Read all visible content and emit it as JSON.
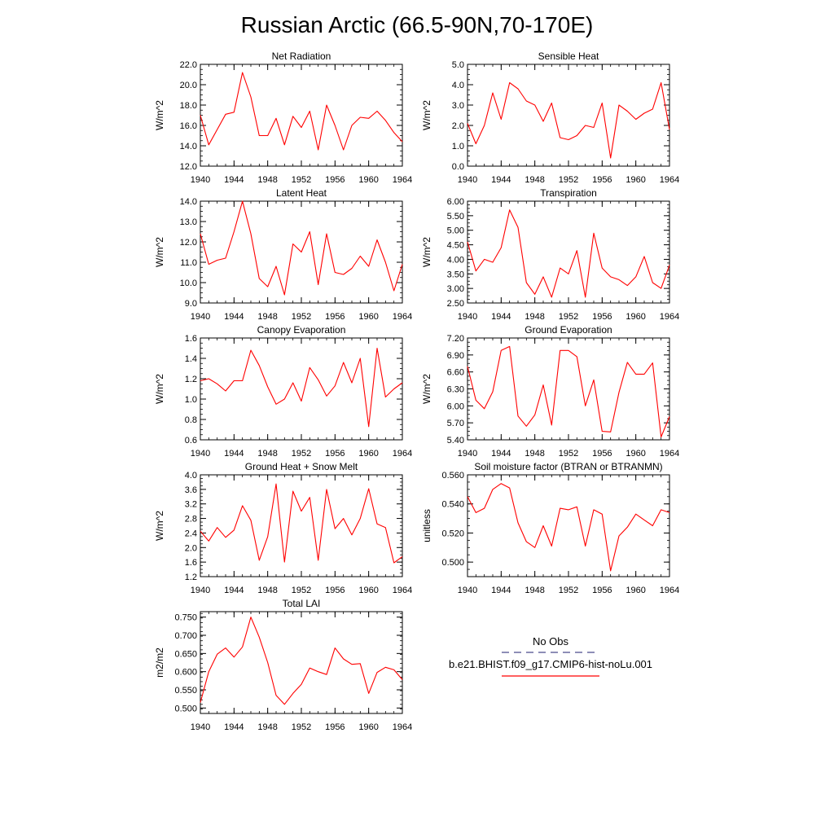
{
  "page": {
    "title": "Russian Arctic (66.5-90N,70-170E)"
  },
  "legend": {
    "obs_label": "No Obs",
    "obs_color": "#4b4b8c",
    "model_label": "b.e21.BHIST.f09_g17.CMIP6-hist-noLu.001",
    "model_color": "#ff0000"
  },
  "chart_data": [
    {
      "type": "line",
      "title": "Net Radiation",
      "ylabel": "W/m^2",
      "xlim": [
        1940,
        1964
      ],
      "ylim": [
        12.0,
        22.0
      ],
      "xticks": [
        "1940",
        "1944",
        "1948",
        "1952",
        "1956",
        "1960",
        "1964"
      ],
      "yticks": [
        "12.0",
        "14.0",
        "16.0",
        "18.0",
        "20.0",
        "22.0"
      ],
      "x": [
        1940,
        1941,
        1942,
        1943,
        1944,
        1945,
        1946,
        1947,
        1948,
        1949,
        1950,
        1951,
        1952,
        1953,
        1954,
        1955,
        1956,
        1957,
        1958,
        1959,
        1960,
        1961,
        1962,
        1963,
        1964
      ],
      "series": [
        {
          "values": [
            17.0,
            14.1,
            15.6,
            17.1,
            17.3,
            21.2,
            18.8,
            15.0,
            15.0,
            16.7,
            14.1,
            16.9,
            15.8,
            17.4,
            13.6,
            18.0,
            16.0,
            13.6,
            16.0,
            16.8,
            16.7,
            17.4,
            16.5,
            15.3,
            14.4
          ]
        }
      ]
    },
    {
      "type": "line",
      "title": "Sensible Heat",
      "ylabel": "W/m^2",
      "xlim": [
        1940,
        1964
      ],
      "ylim": [
        0.0,
        5.0
      ],
      "xticks": [
        "1940",
        "1944",
        "1948",
        "1952",
        "1956",
        "1960",
        "1964"
      ],
      "yticks": [
        "0.0",
        "1.0",
        "2.0",
        "3.0",
        "4.0",
        "5.0"
      ],
      "x": [
        1940,
        1941,
        1942,
        1943,
        1944,
        1945,
        1946,
        1947,
        1948,
        1949,
        1950,
        1951,
        1952,
        1953,
        1954,
        1955,
        1956,
        1957,
        1958,
        1959,
        1960,
        1961,
        1962,
        1963,
        1964
      ],
      "series": [
        {
          "values": [
            2.1,
            1.1,
            2.0,
            3.6,
            2.3,
            4.1,
            3.8,
            3.2,
            3.0,
            2.2,
            3.1,
            1.4,
            1.3,
            1.5,
            2.0,
            1.9,
            3.1,
            0.4,
            3.0,
            2.7,
            2.3,
            2.6,
            2.8,
            4.1,
            1.8
          ]
        }
      ]
    },
    {
      "type": "line",
      "title": "Latent Heat",
      "ylabel": "W/m^2",
      "xlim": [
        1940,
        1964
      ],
      "ylim": [
        9.0,
        14.0
      ],
      "xticks": [
        "1940",
        "1944",
        "1948",
        "1952",
        "1956",
        "1960",
        "1964"
      ],
      "yticks": [
        "9.0",
        "10.0",
        "11.0",
        "12.0",
        "13.0",
        "14.0"
      ],
      "x": [
        1940,
        1941,
        1942,
        1943,
        1944,
        1945,
        1946,
        1947,
        1948,
        1949,
        1950,
        1951,
        1952,
        1953,
        1954,
        1955,
        1956,
        1957,
        1958,
        1959,
        1960,
        1961,
        1962,
        1963,
        1964
      ],
      "series": [
        {
          "values": [
            12.4,
            10.9,
            11.1,
            11.2,
            12.5,
            14.0,
            12.4,
            10.2,
            9.8,
            10.8,
            9.4,
            11.9,
            11.5,
            12.5,
            9.9,
            12.4,
            10.5,
            10.4,
            10.7,
            11.3,
            10.8,
            12.1,
            11.0,
            9.6,
            10.9
          ]
        }
      ]
    },
    {
      "type": "line",
      "title": "Transpiration",
      "ylabel": "W/m^2",
      "xlim": [
        1940,
        1964
      ],
      "ylim": [
        2.5,
        6.0
      ],
      "xticks": [
        "1940",
        "1944",
        "1948",
        "1952",
        "1956",
        "1960",
        "1964"
      ],
      "yticks": [
        "2.50",
        "3.00",
        "3.50",
        "4.00",
        "4.50",
        "5.00",
        "5.50",
        "6.00"
      ],
      "x": [
        1940,
        1941,
        1942,
        1943,
        1944,
        1945,
        1946,
        1947,
        1948,
        1949,
        1950,
        1951,
        1952,
        1953,
        1954,
        1955,
        1956,
        1957,
        1958,
        1959,
        1960,
        1961,
        1962,
        1963,
        1964
      ],
      "series": [
        {
          "values": [
            4.6,
            3.6,
            4.0,
            3.9,
            4.4,
            5.7,
            5.1,
            3.2,
            2.8,
            3.4,
            2.7,
            3.7,
            3.5,
            4.3,
            2.7,
            4.9,
            3.7,
            3.4,
            3.3,
            3.1,
            3.4,
            4.1,
            3.2,
            3.0,
            3.8
          ]
        }
      ]
    },
    {
      "type": "line",
      "title": "Canopy Evaporation",
      "ylabel": "W/m^2",
      "xlim": [
        1940,
        1964
      ],
      "ylim": [
        0.6,
        1.6
      ],
      "xticks": [
        "1940",
        "1944",
        "1948",
        "1952",
        "1956",
        "1960",
        "1964"
      ],
      "yticks": [
        "0.6",
        "0.8",
        "1.0",
        "1.2",
        "1.4",
        "1.6"
      ],
      "x": [
        1940,
        1941,
        1942,
        1943,
        1944,
        1945,
        1946,
        1947,
        1948,
        1949,
        1950,
        1951,
        1952,
        1953,
        1954,
        1955,
        1956,
        1957,
        1958,
        1959,
        1960,
        1961,
        1962,
        1963,
        1964
      ],
      "series": [
        {
          "values": [
            1.18,
            1.2,
            1.15,
            1.08,
            1.18,
            1.18,
            1.48,
            1.33,
            1.12,
            0.95,
            1.0,
            1.16,
            0.98,
            1.31,
            1.19,
            1.03,
            1.13,
            1.36,
            1.16,
            1.4,
            0.73,
            1.5,
            1.02,
            1.1,
            1.16
          ]
        }
      ]
    },
    {
      "type": "line",
      "title": "Ground Evaporation",
      "ylabel": "W/m^2",
      "xlim": [
        1940,
        1964
      ],
      "ylim": [
        5.4,
        7.2
      ],
      "xticks": [
        "1940",
        "1944",
        "1948",
        "1952",
        "1956",
        "1960",
        "1964"
      ],
      "yticks": [
        "5.40",
        "5.70",
        "6.00",
        "6.30",
        "6.60",
        "6.90",
        "7.20"
      ],
      "x": [
        1940,
        1941,
        1942,
        1943,
        1944,
        1945,
        1946,
        1947,
        1948,
        1949,
        1950,
        1951,
        1952,
        1953,
        1954,
        1955,
        1956,
        1957,
        1958,
        1959,
        1960,
        1961,
        1962,
        1963,
        1964
      ],
      "series": [
        {
          "values": [
            6.7,
            6.1,
            5.95,
            6.25,
            6.98,
            7.05,
            5.82,
            5.64,
            5.84,
            6.37,
            5.66,
            6.98,
            6.98,
            6.87,
            6.0,
            6.46,
            5.55,
            5.54,
            6.24,
            6.77,
            6.56,
            6.56,
            6.76,
            5.45,
            5.81
          ]
        }
      ]
    },
    {
      "type": "line",
      "title": "Ground Heat + Snow Melt",
      "ylabel": "W/m^2",
      "xlim": [
        1940,
        1964
      ],
      "ylim": [
        1.2,
        4.0
      ],
      "xticks": [
        "1940",
        "1944",
        "1948",
        "1952",
        "1956",
        "1960",
        "1964"
      ],
      "yticks": [
        "1.2",
        "1.6",
        "2.0",
        "2.4",
        "2.8",
        "3.2",
        "3.6",
        "4.0"
      ],
      "x": [
        1940,
        1941,
        1942,
        1943,
        1944,
        1945,
        1946,
        1947,
        1948,
        1949,
        1950,
        1951,
        1952,
        1953,
        1954,
        1955,
        1956,
        1957,
        1958,
        1959,
        1960,
        1961,
        1962,
        1963,
        1964
      ],
      "series": [
        {
          "values": [
            2.45,
            2.18,
            2.55,
            2.28,
            2.48,
            3.15,
            2.75,
            1.65,
            2.3,
            3.75,
            1.6,
            3.55,
            3.0,
            3.38,
            1.65,
            3.6,
            2.52,
            2.8,
            2.35,
            2.8,
            3.62,
            2.65,
            2.55,
            1.58,
            1.75
          ]
        }
      ]
    },
    {
      "type": "line",
      "title": "Soil moisture factor (BTRAN or BTRANMN)",
      "ylabel": "unitless",
      "xlim": [
        1940,
        1964
      ],
      "ylim": [
        0.49,
        0.56
      ],
      "xticks": [
        "1940",
        "1944",
        "1948",
        "1952",
        "1956",
        "1960",
        "1964"
      ],
      "yticks": [
        "0.500",
        "0.520",
        "0.540",
        "0.560"
      ],
      "x": [
        1940,
        1941,
        1942,
        1943,
        1944,
        1945,
        1946,
        1947,
        1948,
        1949,
        1950,
        1951,
        1952,
        1953,
        1954,
        1955,
        1956,
        1957,
        1958,
        1959,
        1960,
        1961,
        1962,
        1963,
        1964
      ],
      "series": [
        {
          "values": [
            0.545,
            0.534,
            0.537,
            0.55,
            0.554,
            0.551,
            0.527,
            0.514,
            0.51,
            0.525,
            0.511,
            0.537,
            0.536,
            0.538,
            0.511,
            0.536,
            0.533,
            0.494,
            0.518,
            0.524,
            0.533,
            0.529,
            0.525,
            0.536,
            0.534
          ]
        }
      ]
    },
    {
      "type": "line",
      "title": "Total LAI",
      "ylabel": "m2/m2",
      "xlim": [
        1940,
        1964
      ],
      "ylim": [
        0.485,
        0.765
      ],
      "xticks": [
        "1940",
        "1944",
        "1948",
        "1952",
        "1956",
        "1960",
        "1964"
      ],
      "yticks": [
        "0.500",
        "0.550",
        "0.600",
        "0.650",
        "0.700",
        "0.750"
      ],
      "x": [
        1940,
        1941,
        1942,
        1943,
        1944,
        1945,
        1946,
        1947,
        1948,
        1949,
        1950,
        1951,
        1952,
        1953,
        1954,
        1955,
        1956,
        1957,
        1958,
        1959,
        1960,
        1961,
        1962,
        1963,
        1964
      ],
      "series": [
        {
          "values": [
            0.515,
            0.6,
            0.648,
            0.665,
            0.64,
            0.668,
            0.75,
            0.695,
            0.625,
            0.535,
            0.51,
            0.54,
            0.565,
            0.61,
            0.6,
            0.592,
            0.665,
            0.635,
            0.62,
            0.622,
            0.54,
            0.598,
            0.612,
            0.605,
            0.578
          ]
        }
      ]
    }
  ]
}
